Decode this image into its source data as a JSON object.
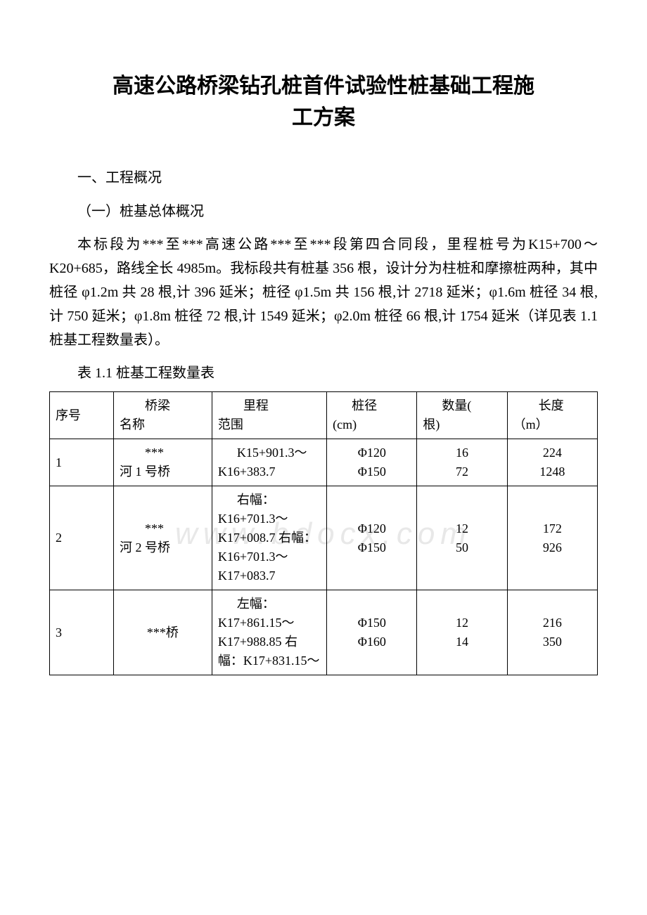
{
  "doc": {
    "title_line1": "高速公路桥梁钻孔桩首件试验性桩基础工程施",
    "title_line2": "工方案",
    "section1": "一、工程概况",
    "subsection1": "（一）桩基总体概况",
    "paragraph1": "本标段为***至***高速公路***至***段第四合同段，里程桩号为K15+700～K20+685，路线全长 4985m。我标段共有桩基 356 根，设计分为柱桩和摩擦桩两种，其中桩径 φ1.2m 共 28 根,计 396 延米；桩径 φ1.5m 共 156 根,计 2718 延米；φ1.6m 桩径 34 根,计 750 延米；φ1.8m 桩径 72 根,计 1549 延米；φ2.0m 桩径 66 根,计 1754 延米（详见表 1.1 桩基工程数量表）。",
    "table_caption": "表 1.1 桩基工程数量表",
    "watermark": "www.bdocx.com"
  },
  "table": {
    "headers": {
      "seq_l1": "序号",
      "name_l1": "桥梁",
      "name_l2": "名称",
      "range_l1": "里程",
      "range_l2": "范围",
      "dia_l1": "桩径",
      "dia_l2": "(cm)",
      "qty_l1": "数量(",
      "qty_l2": "根)",
      "len_l1": "长度",
      "len_l2": "（m）"
    },
    "rows": [
      {
        "seq": "1",
        "name_l1": "***",
        "name_l2": "河 1 号桥",
        "range": "K15+901.3～K16+383.7",
        "dia_l1": "Φ120",
        "dia_l2": "Φ150",
        "qty_l1": "16",
        "qty_l2": "72",
        "len_l1": "224",
        "len_l2": "1248"
      },
      {
        "seq": "2",
        "name_l1": "***",
        "name_l2": "河 2 号桥",
        "range": "右幅：K16+701.3～K17+008.7 右幅：K16+701.3～K17+083.7",
        "dia_l1": "Φ120",
        "dia_l2": "Φ150",
        "qty_l1": "12",
        "qty_l2": "50",
        "len_l1": "172",
        "len_l2": "926"
      },
      {
        "seq": "3",
        "name_l1": "",
        "name_l2": "***桥",
        "range": "左幅：K17+861.15～K17+988.85 右幅：K17+831.15～",
        "dia_l1": "Φ150",
        "dia_l2": "Φ160",
        "qty_l1": "12",
        "qty_l2": "14",
        "len_l1": "216",
        "len_l2": "350"
      }
    ]
  },
  "styles": {
    "page_bg": "#ffffff",
    "text_color": "#000000",
    "watermark_color": "#e8e8e8",
    "border_color": "#000000",
    "title_fontsize": 30,
    "body_fontsize": 20,
    "table_fontsize": 18
  }
}
